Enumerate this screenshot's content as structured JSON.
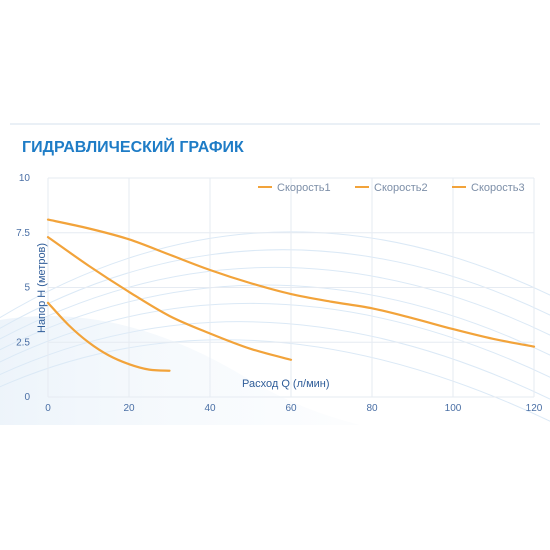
{
  "title": "ГИДРАВЛИЧЕСКИЙ ГРАФИК",
  "colors": {
    "series": "#f2a33a",
    "title": "#1e7cc6",
    "tick": "#4a6fa5",
    "grid": "#e6ebf2",
    "frame": "#d5e2ee"
  },
  "chart_data": {
    "type": "line",
    "title": "ГИДРАВЛИЧЕСКИЙ ГРАФИК",
    "xlabel": "Расход Q (л/мин)",
    "ylabel": "Напор H (метров)",
    "xlim": [
      0,
      120
    ],
    "ylim": [
      0,
      10
    ],
    "xticks": [
      0,
      20,
      40,
      60,
      80,
      100,
      120
    ],
    "yticks": [
      0,
      2.5,
      5,
      7.5,
      10
    ],
    "ytick_labels": [
      "0",
      "2.5",
      "5",
      "7.5",
      "10"
    ],
    "grid": true,
    "legend_position": "top-right",
    "series": [
      {
        "name": "Скорость1",
        "x": [
          0,
          10,
          20,
          30,
          40,
          50,
          60,
          70,
          80,
          90,
          100,
          110,
          120
        ],
        "y": [
          8.1,
          7.7,
          7.2,
          6.5,
          5.8,
          5.2,
          4.7,
          4.35,
          4.05,
          3.6,
          3.1,
          2.65,
          2.3
        ]
      },
      {
        "name": "Скорость2",
        "x": [
          0,
          10,
          20,
          30,
          40,
          50,
          60
        ],
        "y": [
          7.3,
          6.0,
          4.8,
          3.7,
          2.9,
          2.2,
          1.7
        ]
      },
      {
        "name": "Скорость3",
        "x": [
          0,
          5,
          10,
          15,
          20,
          25,
          30
        ],
        "y": [
          4.3,
          3.3,
          2.5,
          1.9,
          1.5,
          1.25,
          1.2
        ]
      }
    ]
  }
}
